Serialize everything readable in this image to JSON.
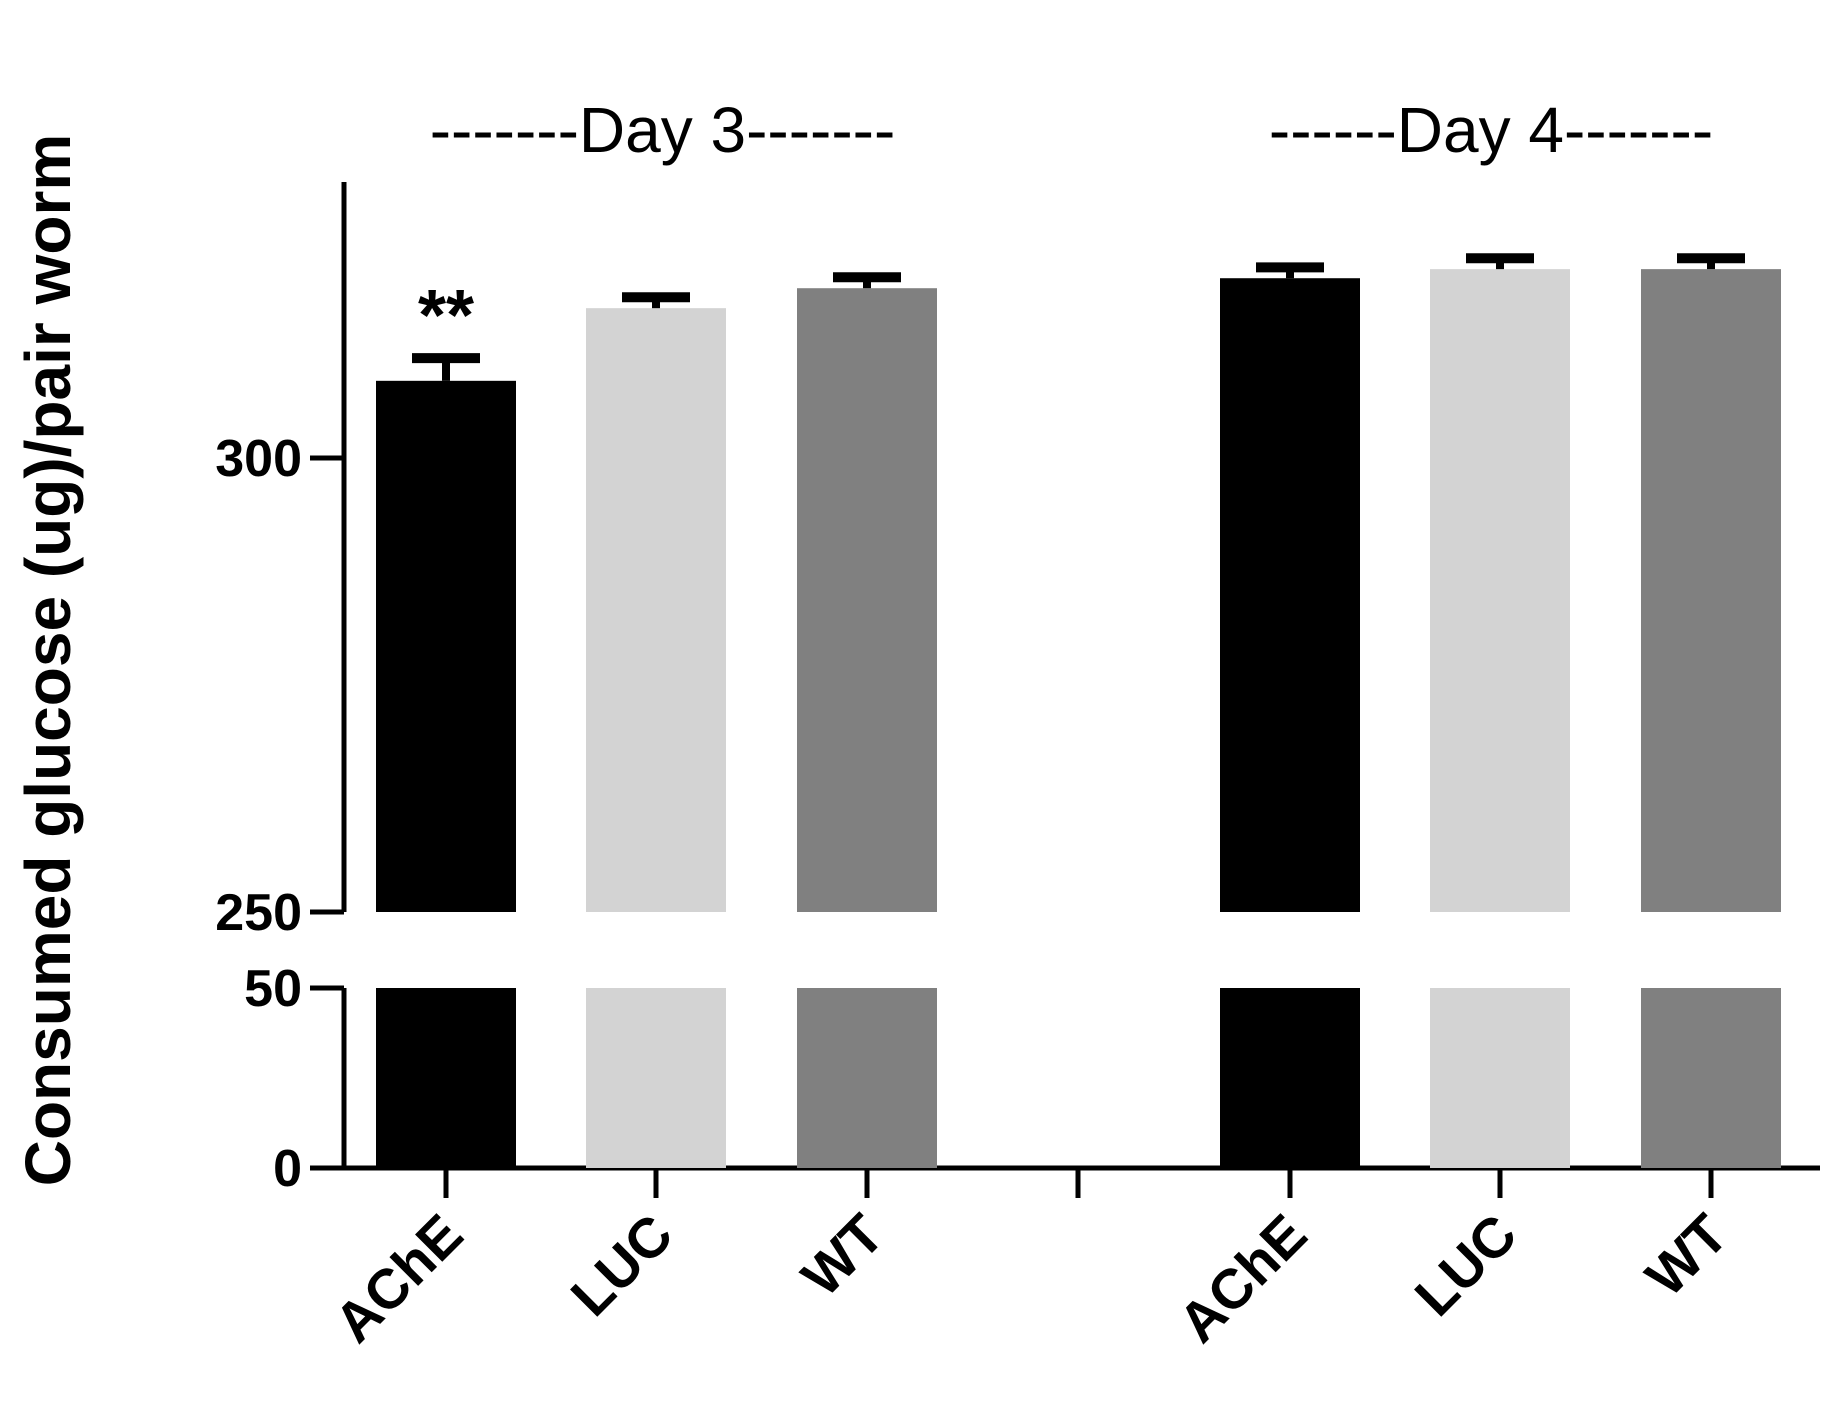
{
  "chart_data": {
    "type": "bar",
    "ylabel": "Consumed glucose (ug)/pair worm",
    "xlabel": "",
    "axis_break": {
      "lower_segment": [
        0,
        50
      ],
      "upper_segment": [
        250,
        331
      ],
      "lower_ticks": [
        "0",
        "50"
      ],
      "upper_ticks": [
        "250",
        "300"
      ]
    },
    "groups": [
      {
        "label": "-------Day 3-------",
        "bars": [
          {
            "category": "AChE",
            "value": 308.5,
            "error": 2.5,
            "color": "#000000",
            "annotation": "**"
          },
          {
            "category": "LUC",
            "value": 316.5,
            "error": 1.2,
            "color": "#d3d3d3",
            "annotation": ""
          },
          {
            "category": "WT",
            "value": 318.7,
            "error": 1.2,
            "color": "#808080",
            "annotation": ""
          }
        ]
      },
      {
        "label": "------Day 4-------",
        "bars": [
          {
            "category": "AChE",
            "value": 319.8,
            "error": 1.2,
            "color": "#000000",
            "annotation": ""
          },
          {
            "category": "LUC",
            "value": 320.8,
            "error": 1.2,
            "color": "#d3d3d3",
            "annotation": ""
          },
          {
            "category": "WT",
            "value": 320.8,
            "error": 1.2,
            "color": "#808080",
            "annotation": ""
          }
        ]
      }
    ]
  }
}
